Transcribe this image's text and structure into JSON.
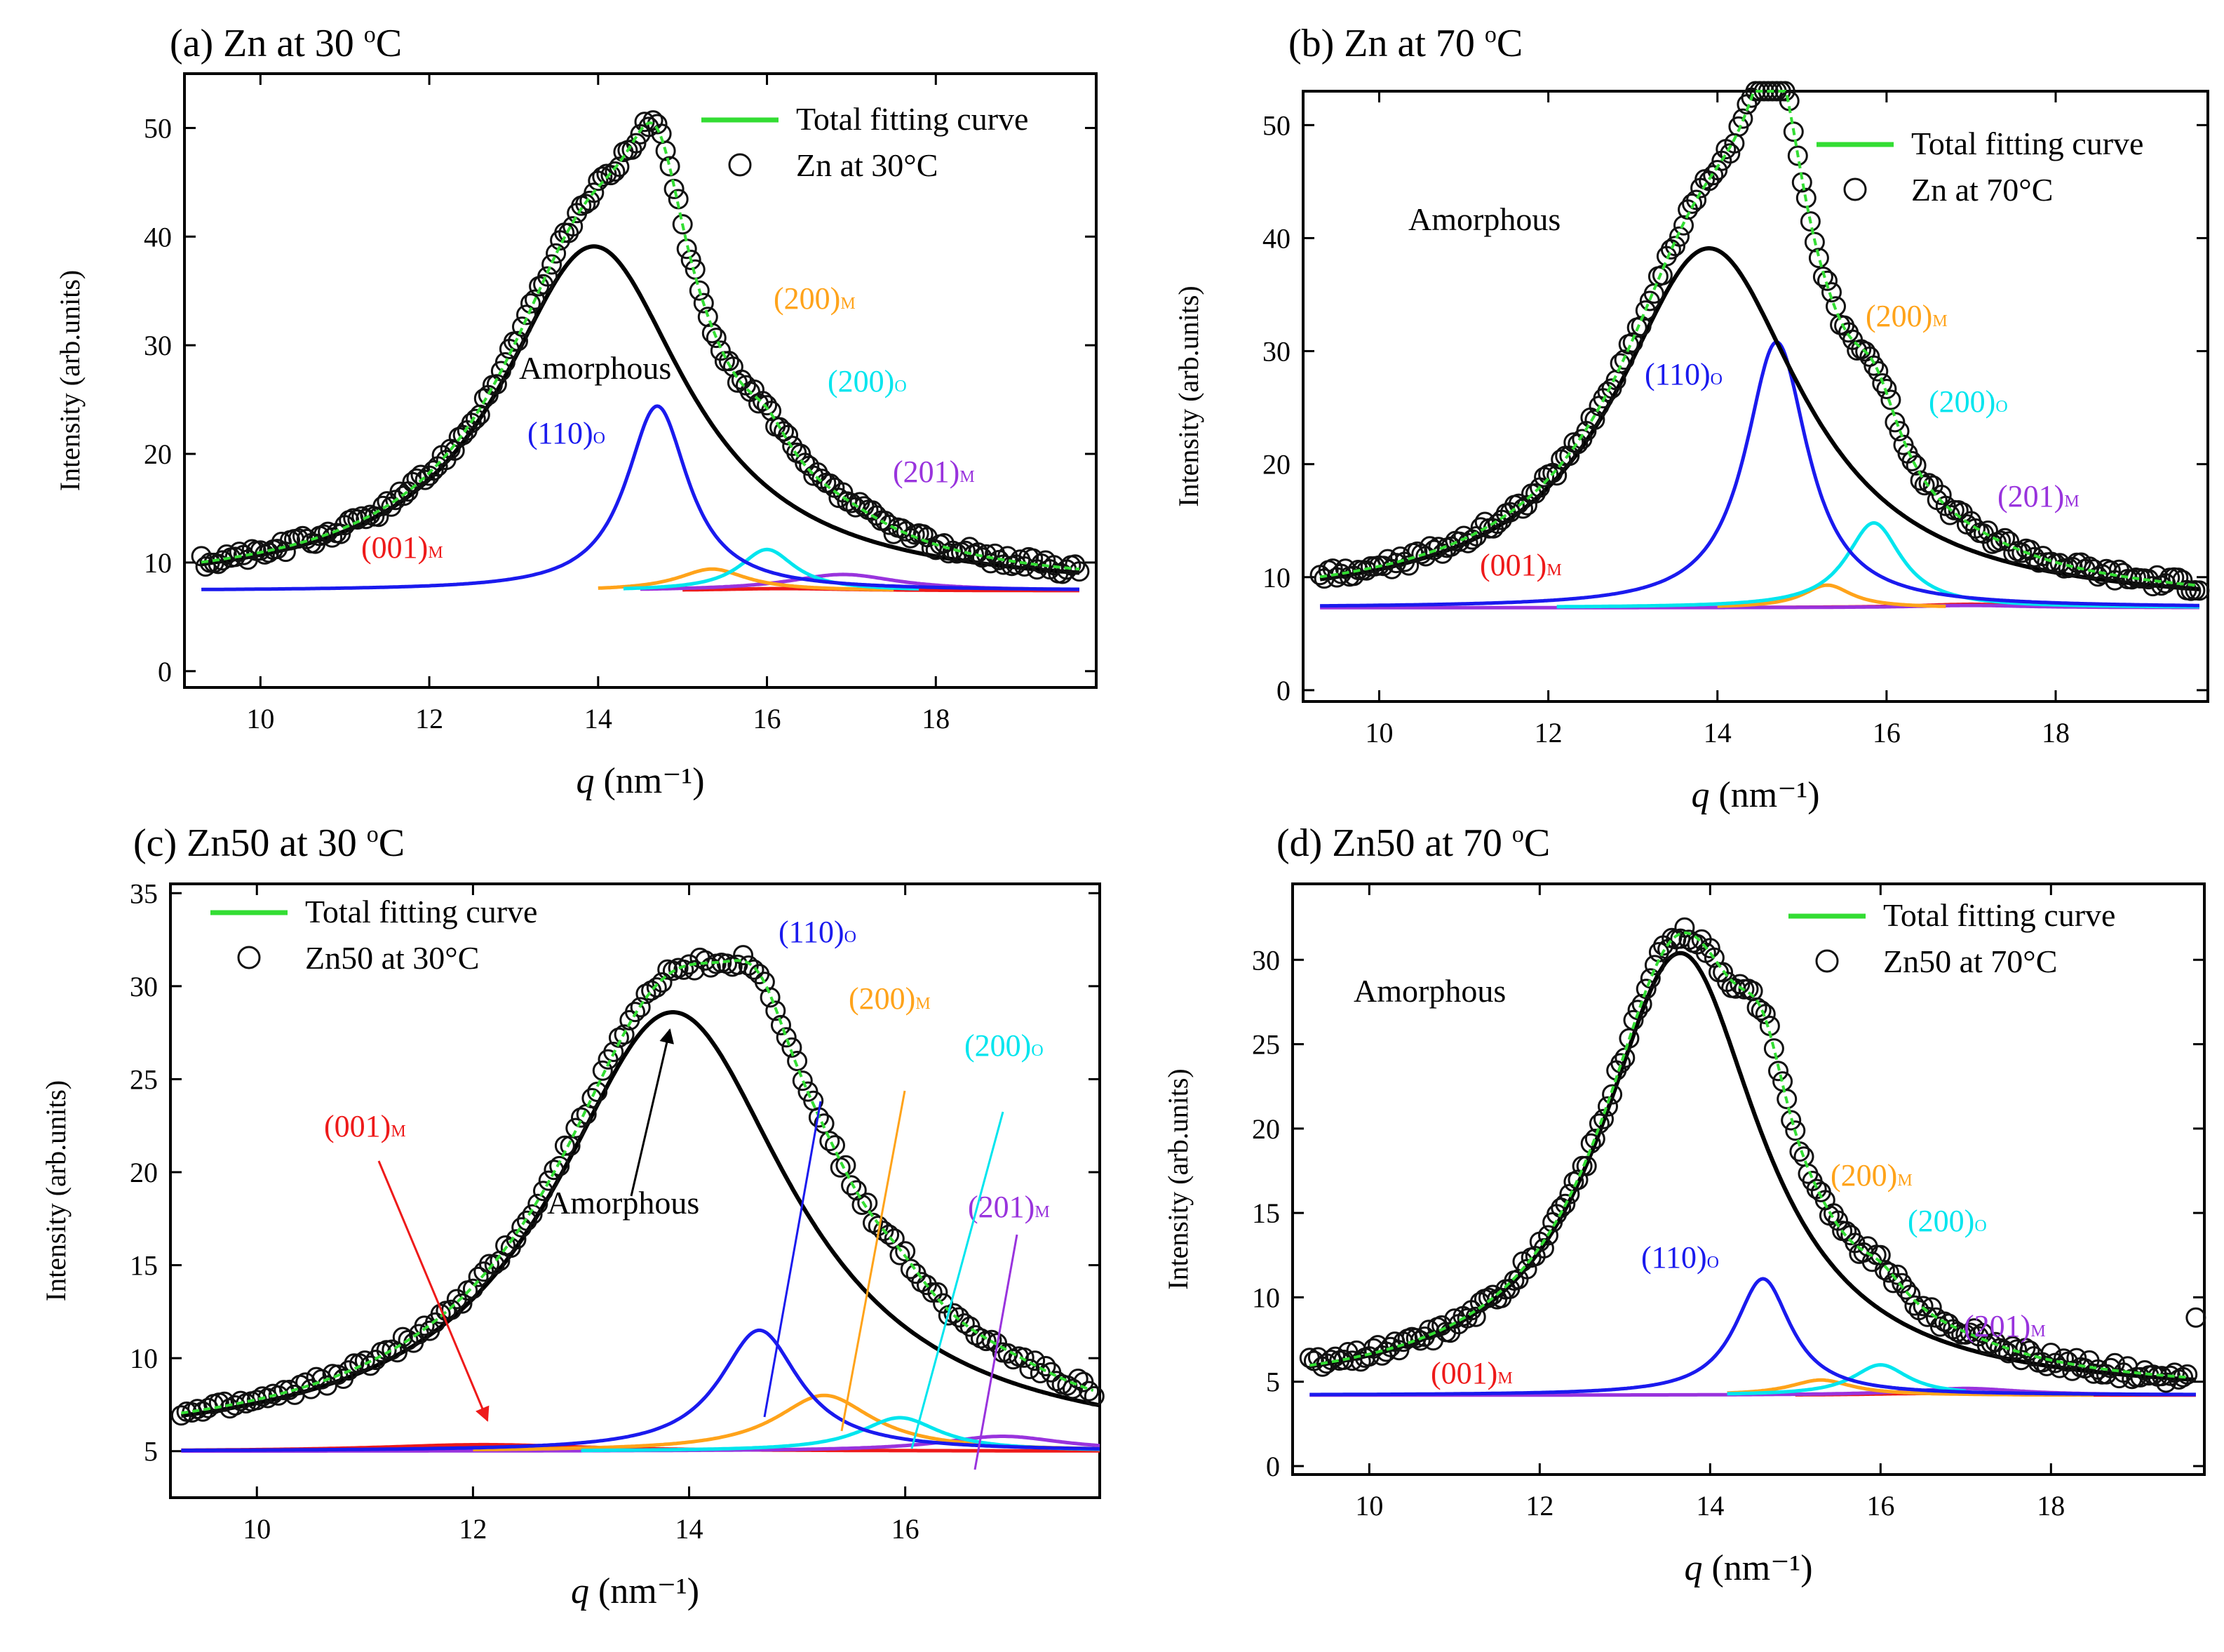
{
  "colors": {
    "total": "#33dd33",
    "amorphous": "#000000",
    "p110o": "#1a1aee",
    "p200m": "#ffa31a",
    "p200o": "#00e5ee",
    "p201m": "#9933dd",
    "p001m": "#ee1a1a",
    "data": "#111111"
  },
  "chart_data": [
    {
      "id": "a",
      "type": "line",
      "title": "(a) Zn at 30 ",
      "title_sup": "o",
      "title_end": "C",
      "xlabel_var": "q",
      "xlabel_unit": " (nm⁻¹)",
      "ylabel": "Intensity (arb.units)",
      "xlim": [
        9.1,
        19.9
      ],
      "ylim": [
        -1.5,
        55
      ],
      "xticks": [
        10,
        12,
        14,
        16,
        18
      ],
      "yticks": [
        0,
        10,
        20,
        30,
        40,
        50
      ],
      "legend": {
        "total": "Total fitting curve",
        "data": "Zn at 30°C"
      },
      "baseline": 7.4,
      "sample_label": "Zn at 30°C",
      "amorphous": {
        "center": 13.95,
        "height": 31.7,
        "width": 1.35,
        "baseline": 7.4,
        "start": 9.3,
        "end": 19.7
      },
      "peaks": [
        {
          "key": "p110o",
          "name": "(110)",
          "sub": "O",
          "center": 14.7,
          "height": 17.0,
          "width": 0.45,
          "start": 9.3,
          "end": 19.7
        },
        {
          "key": "p200m",
          "name": "(200)",
          "sub": "M",
          "center": 15.35,
          "height": 2.0,
          "width": 0.5,
          "start": 14.0,
          "end": 17.5
        },
        {
          "key": "p200o",
          "name": "(200)",
          "sub": "O",
          "center": 16.0,
          "height": 3.8,
          "width": 0.4,
          "start": 14.3,
          "end": 17.8
        },
        {
          "key": "p201m",
          "name": "(201)",
          "sub": "M",
          "center": 16.9,
          "height": 1.5,
          "width": 0.8,
          "start": 14.5,
          "end": 19.7
        },
        {
          "key": "p001m",
          "name": "(001)",
          "sub": "M",
          "center": 16.2,
          "height": 0.2,
          "width": 1.0,
          "start": 15.0,
          "end": 19.7
        }
      ],
      "data_points": {
        "from": 9.3,
        "to": 19.7,
        "step": 0.05,
        "noise": 0.6
      },
      "labels": {
        "amorphous": "Amorphous",
        "p110o": "(110)",
        "p200m": "(200)",
        "p200o": "(200)",
        "p201m": "(201)",
        "p001m": "(001)"
      }
    },
    {
      "id": "b",
      "type": "line",
      "title": "(b) Zn at 70 ",
      "title_sup": "o",
      "title_end": "C",
      "xlabel_var": "q",
      "xlabel_unit": " (nm⁻¹)",
      "ylabel": "Intensity (arb.units)",
      "xlim": [
        9.1,
        19.8
      ],
      "ylim": [
        -1,
        53
      ],
      "xticks": [
        10,
        12,
        14,
        16,
        18
      ],
      "yticks": [
        0,
        10,
        20,
        30,
        40,
        50
      ],
      "legend": {
        "total": "Total fitting curve",
        "data": "Zn at 70°C"
      },
      "baseline": 7.3,
      "sample_label": "Zn at 70°C",
      "amorphous": {
        "center": 13.9,
        "height": 31.8,
        "width": 1.35,
        "baseline": 7.3,
        "start": 9.3,
        "end": 19.7
      },
      "peaks": [
        {
          "key": "p110o",
          "name": "(110)",
          "sub": "O",
          "center": 14.7,
          "height": 23.5,
          "width": 0.45,
          "start": 9.3,
          "end": 19.7
        },
        {
          "key": "p200m",
          "name": "(200)",
          "sub": "M",
          "center": 15.3,
          "height": 2.0,
          "width": 0.35,
          "start": 14.0,
          "end": 16.7
        },
        {
          "key": "p200o",
          "name": "(200)",
          "sub": "O",
          "center": 15.85,
          "height": 7.5,
          "width": 0.4,
          "start": 12.1,
          "end": 19.7
        },
        {
          "key": "p201m",
          "name": "(201)",
          "sub": "M",
          "center": 17.0,
          "height": 0.2,
          "width": 0.8,
          "start": 9.3,
          "end": 19.7
        },
        {
          "key": "p001m",
          "name": "(001)",
          "sub": "M",
          "center": 17.0,
          "height": 0.3,
          "width": 0.8,
          "start": 14.5,
          "end": 17.5
        }
      ],
      "data_points": {
        "from": 9.3,
        "to": 19.7,
        "step": 0.05,
        "noise": 0.6
      },
      "labels": {
        "amorphous": "Amorphous",
        "p110o": "(110)",
        "p200m": "(200)",
        "p200o": "(200)",
        "p201m": "(201)",
        "p001m": "(001)"
      }
    },
    {
      "id": "c",
      "type": "line",
      "title": "(c) Zn50 at 30 ",
      "title_sup": "o",
      "title_end": "C",
      "xlabel_var": "q",
      "xlabel_unit": " (nm⁻¹)",
      "ylabel": "Intensity (arb.units)",
      "xlim": [
        9.2,
        17.8
      ],
      "ylim": [
        2.5,
        35.5
      ],
      "xticks": [
        10,
        12,
        14,
        16
      ],
      "yticks": [
        5,
        10,
        15,
        20,
        25,
        30,
        35
      ],
      "legend": {
        "total": "Total fitting curve",
        "data": "Zn50 at 30°C"
      },
      "baseline": 5.0,
      "sample_label": "Zn50 at 30°C",
      "amorphous": {
        "center": 13.85,
        "height": 23.6,
        "width": 1.35,
        "baseline": 5.0,
        "start": 9.3,
        "end": 17.8
      },
      "peaks": [
        {
          "key": "p110o",
          "name": "(110)",
          "sub": "O",
          "center": 14.65,
          "height": 6.5,
          "width": 0.45,
          "start": 9.3,
          "end": 17.8
        },
        {
          "key": "p200m",
          "name": "(200)",
          "sub": "M",
          "center": 15.25,
          "height": 3.0,
          "width": 0.55,
          "start": 12.0,
          "end": 17.8
        },
        {
          "key": "p200o",
          "name": "(200)",
          "sub": "O",
          "center": 15.95,
          "height": 1.8,
          "width": 0.45,
          "start": 13.0,
          "end": 17.8
        },
        {
          "key": "p201m",
          "name": "(201)",
          "sub": "M",
          "center": 16.9,
          "height": 0.8,
          "width": 0.7,
          "start": 9.3,
          "end": 17.8
        },
        {
          "key": "p001m",
          "name": "(001)",
          "sub": "M",
          "center": 12.1,
          "height": 0.35,
          "width": 1.2,
          "start": 9.3,
          "end": 17.8
        }
      ],
      "data_points": {
        "from": 9.3,
        "to": 17.75,
        "step": 0.05,
        "noise": 0.35
      },
      "labels": {
        "amorphous": "Amorphous",
        "p110o": "(110)",
        "p200m": "(200)",
        "p200o": "(200)",
        "p201m": "(201)",
        "p001m": "(001)"
      }
    },
    {
      "id": "d",
      "type": "line",
      "title": "(d) Zn50 at 70 ",
      "title_sup": "o",
      "title_end": "C",
      "xlabel_var": "q",
      "xlabel_unit": " (nm⁻¹)",
      "ylabel": "Intensity (arb.units)",
      "xlim": [
        9.1,
        19.8
      ],
      "ylim": [
        -0.5,
        34.5
      ],
      "xticks": [
        10,
        12,
        14,
        16,
        18
      ],
      "yticks": [
        0,
        5,
        10,
        15,
        20,
        25,
        30
      ],
      "legend": {
        "total": "Total fitting curve",
        "data": "Zn50 at 70°C"
      },
      "baseline": 4.2,
      "sample_label": "Zn50 at 70°C",
      "amorphous": {
        "center": 13.65,
        "height": 26.2,
        "width": 1.15,
        "baseline": 4.2,
        "start": 9.3,
        "end": 19.7
      },
      "peaks": [
        {
          "key": "p110o",
          "name": "(110)",
          "sub": "O",
          "center": 14.62,
          "height": 6.9,
          "width": 0.4,
          "start": 9.3,
          "end": 19.7
        },
        {
          "key": "p200m",
          "name": "(200)",
          "sub": "M",
          "center": 15.3,
          "height": 0.9,
          "width": 0.45,
          "start": 14.2,
          "end": 18.5
        },
        {
          "key": "p200o",
          "name": "(200)",
          "sub": "O",
          "center": 16.0,
          "height": 1.8,
          "width": 0.4,
          "start": 14.2,
          "end": 17.0
        },
        {
          "key": "p201m",
          "name": "(201)",
          "sub": "M",
          "center": 17.0,
          "height": 0.4,
          "width": 0.8,
          "start": 9.3,
          "end": 19.7
        },
        {
          "key": "p001m",
          "name": "(001)",
          "sub": "M",
          "center": 16.5,
          "height": 0.1,
          "width": 0.8,
          "start": 15.0,
          "end": 19.7
        }
      ],
      "data_points": {
        "from": 9.3,
        "to": 19.6,
        "step": 0.05,
        "noise": 0.45
      },
      "outlier": {
        "x": 19.7,
        "y": 8.8
      },
      "labels": {
        "amorphous": "Amorphous",
        "p110o": "(110)",
        "p200m": "(200)",
        "p200o": "(200)",
        "p201m": "(201)",
        "p001m": "(001)"
      }
    }
  ]
}
